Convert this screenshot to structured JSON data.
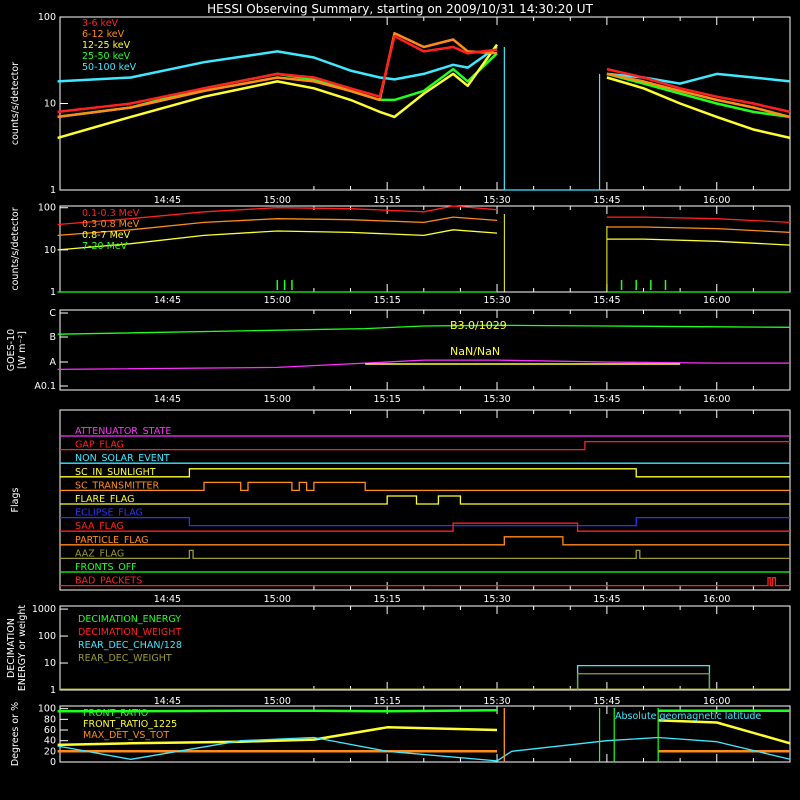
{
  "title": "HESSI Observing Summary, starting on 2009/10/31 14:30:20 UT",
  "time_ticks": [
    "14:45",
    "15:00",
    "15:15",
    "15:30",
    "15:45",
    "16:00"
  ],
  "colors": {
    "red": "#ff2020",
    "orange": "#ff8c1a",
    "yellow": "#ffff30",
    "green": "#20ff20",
    "cyan": "#40e8ff",
    "magenta": "#ff30ff",
    "blue": "#3030ff",
    "olive": "#9a9a30",
    "frame": "#ffffff",
    "text": "#ffffff"
  },
  "panels": {
    "rates": {
      "ylabel": "counts/s/detector",
      "y_ticks": [
        "100",
        "10",
        "1"
      ],
      "scale": "log"
    },
    "hi_rates": {
      "ylabel": "counts/s/detector",
      "y_ticks": [
        "100",
        "10",
        "1"
      ],
      "scale": "log"
    },
    "goes": {
      "ylabel_lines": [
        "GOES-10",
        "[W m⁻²]"
      ],
      "y_ticks": [
        "C",
        "B",
        "A",
        "A0.1"
      ],
      "annotations": [
        "B3.0/1029",
        "NaN/NaN"
      ]
    },
    "flags": {
      "ylabel": "Flags"
    },
    "decimation": {
      "ylabel_lines": [
        "DECIMATION",
        "ENERGY or weight"
      ],
      "y_ticks": [
        "1000",
        "100",
        "10",
        "1"
      ]
    },
    "geo": {
      "ylabel": "Degrees or %",
      "y_ticks": [
        "100",
        "80",
        "60",
        "40",
        "20",
        "0"
      ],
      "annotation": "Absolute geomagnetic latitude"
    }
  },
  "chart_data": [
    {
      "type": "line",
      "panel": "rates",
      "title": "HESSI Observing Summary, starting on 2009/10/31 14:30:20 UT",
      "ylabel": "counts/s/detector",
      "yscale": "log",
      "ylim": [
        1,
        100
      ],
      "x": [
        "14:30",
        "14:40",
        "14:50",
        "15:00",
        "15:05",
        "15:10",
        "15:14",
        "15:16",
        "15:20",
        "15:24",
        "15:26",
        "15:30",
        "15:31",
        "15:44",
        "15:45",
        "15:50",
        "15:55",
        "16:00",
        "16:05",
        "16:10"
      ],
      "series": [
        {
          "name": "3-6 keV",
          "color": "red",
          "values": [
            8,
            10,
            15,
            22,
            20,
            15,
            12,
            60,
            40,
            45,
            38,
            42,
            null,
            null,
            25,
            20,
            15,
            12,
            10,
            8
          ]
        },
        {
          "name": "6-12 keV",
          "color": "orange",
          "values": [
            7,
            9,
            14,
            20,
            18,
            14,
            11,
            65,
            45,
            55,
            40,
            38,
            null,
            null,
            22,
            18,
            14,
            11,
            9,
            7
          ]
        },
        {
          "name": "12-25 keV",
          "color": "yellow",
          "values": [
            4,
            7,
            12,
            18,
            15,
            11,
            8,
            7,
            13,
            22,
            16,
            48,
            null,
            null,
            20,
            15,
            10,
            7,
            5,
            4
          ]
        },
        {
          "name": "25-50 keV",
          "color": "green",
          "values": [
            7,
            9,
            15,
            22,
            19,
            14,
            11,
            11,
            14,
            25,
            18,
            38,
            null,
            null,
            22,
            17,
            13,
            10,
            8,
            7
          ]
        },
        {
          "name": "50-100 keV",
          "color": "cyan",
          "values": [
            18,
            20,
            30,
            40,
            34,
            24,
            20,
            19,
            22,
            28,
            26,
            45,
            null,
            null,
            22,
            20,
            17,
            22,
            20,
            18
          ]
        }
      ]
    },
    {
      "type": "line",
      "panel": "hi_rates",
      "ylabel": "counts/s/detector",
      "yscale": "log",
      "ylim": [
        1,
        100
      ],
      "x": [
        "14:30",
        "14:40",
        "14:50",
        "15:00",
        "15:10",
        "15:20",
        "15:24",
        "15:30",
        "15:31",
        "15:44",
        "15:45",
        "15:50",
        "16:00",
        "16:10"
      ],
      "series": [
        {
          "name": "0.1-0.3 MeV",
          "color": "red",
          "values": [
            40,
            55,
            80,
            100,
            95,
            80,
            110,
            90,
            null,
            null,
            60,
            60,
            55,
            45
          ]
        },
        {
          "name": "0.3-0.8 MeV",
          "color": "orange",
          "values": [
            22,
            30,
            45,
            55,
            52,
            45,
            60,
            50,
            null,
            null,
            35,
            35,
            32,
            26
          ]
        },
        {
          "name": "0.8-7 MeV",
          "color": "yellow",
          "values": [
            10,
            14,
            22,
            28,
            26,
            22,
            30,
            25,
            null,
            null,
            18,
            18,
            16,
            13
          ]
        },
        {
          "name": "7-20 MeV",
          "color": "green",
          "values": [
            1,
            1,
            1,
            1,
            1,
            1,
            1,
            1,
            null,
            null,
            1,
            1,
            1,
            1
          ]
        }
      ]
    },
    {
      "type": "line",
      "panel": "goes",
      "ylabel": "GOES-10 [W m⁻²]",
      "y_levels": [
        "A0.1",
        "A",
        "B",
        "C"
      ],
      "x": [
        "14:30",
        "15:00",
        "15:12",
        "15:20",
        "15:30",
        "15:45",
        "16:00",
        "16:10"
      ],
      "series": [
        {
          "color": "green",
          "values": [
            "B1.3",
            "B1.9",
            "B2.2",
            "B2.8",
            "B3.0",
            "B2.8",
            "B2.6",
            "B2.5"
          ]
        },
        {
          "color": "magenta",
          "values": [
            "A0.5",
            "A0.6",
            "A0.9",
            "A1.2",
            "A1.2",
            "A1.0",
            "A0.9",
            "A0.9"
          ]
        }
      ]
    },
    {
      "type": "line",
      "panel": "flags",
      "series": [
        {
          "name": "ATTENUATOR_STATE",
          "color": "magenta"
        },
        {
          "name": "GAP_FLAG",
          "color": "red"
        },
        {
          "name": "NON_SOLAR_EVENT",
          "color": "cyan"
        },
        {
          "name": "SC_IN_SUNLIGHT",
          "color": "yellow"
        },
        {
          "name": "SC_TRANSMITTER",
          "color": "orange"
        },
        {
          "name": "FLARE_FLAG",
          "color": "yellow"
        },
        {
          "name": "ECLIPSE_FLAG",
          "color": "blue"
        },
        {
          "name": "SAA_FLAG",
          "color": "red"
        },
        {
          "name": "PARTICLE_FLAG",
          "color": "orange"
        },
        {
          "name": "AAZ_FLAG",
          "color": "olive"
        },
        {
          "name": "FRONTS_OFF",
          "color": "green"
        },
        {
          "name": "BAD_PACKETS",
          "color": "red"
        }
      ]
    },
    {
      "type": "line",
      "panel": "decimation",
      "yscale": "log",
      "ylim": [
        1,
        1000
      ],
      "series": [
        {
          "name": "DECIMATION_ENERGY",
          "color": "green"
        },
        {
          "name": "DECIMATION_WEIGHT",
          "color": "red"
        },
        {
          "name": "REAR_DEC_CHAN/128",
          "color": "cyan",
          "values": [
            {
              "x": "15:41",
              "y": 8
            },
            {
              "x": "15:59",
              "y": 8
            }
          ]
        },
        {
          "name": "REAR_DEC_WEIGHT",
          "color": "olive",
          "values": [
            {
              "x": "15:41",
              "y": 4
            },
            {
              "x": "15:59",
              "y": 4
            }
          ]
        }
      ]
    },
    {
      "type": "line",
      "panel": "geo",
      "ylabel": "Degrees or %",
      "ylim": [
        0,
        100
      ],
      "series": [
        {
          "name": "FRONT_RATIO",
          "color": "green",
          "values": [
            95,
            95,
            96,
            96,
            95,
            97,
            null,
            null,
            96,
            96,
            96
          ]
        },
        {
          "name": "FRONT_RATIO_1225",
          "color": "yellow",
          "values": [
            32,
            35,
            38,
            42,
            65,
            60,
            null,
            null,
            78,
            74,
            35
          ]
        },
        {
          "name": "MAX_DET_VS_TOT",
          "color": "orange",
          "values": [
            20,
            20,
            20,
            20,
            20,
            20,
            null,
            null,
            20,
            20,
            20
          ]
        },
        {
          "name": "Absolute geomagnetic latitude",
          "color": "cyan",
          "values": [
            30,
            5,
            40,
            46,
            20,
            2,
            20,
            40,
            46,
            38,
            5
          ]
        }
      ],
      "x": [
        "14:30",
        "14:40",
        "14:55",
        "15:05",
        "15:15",
        "15:30",
        "15:32",
        "15:45",
        "15:52",
        "16:00",
        "16:10"
      ]
    }
  ]
}
